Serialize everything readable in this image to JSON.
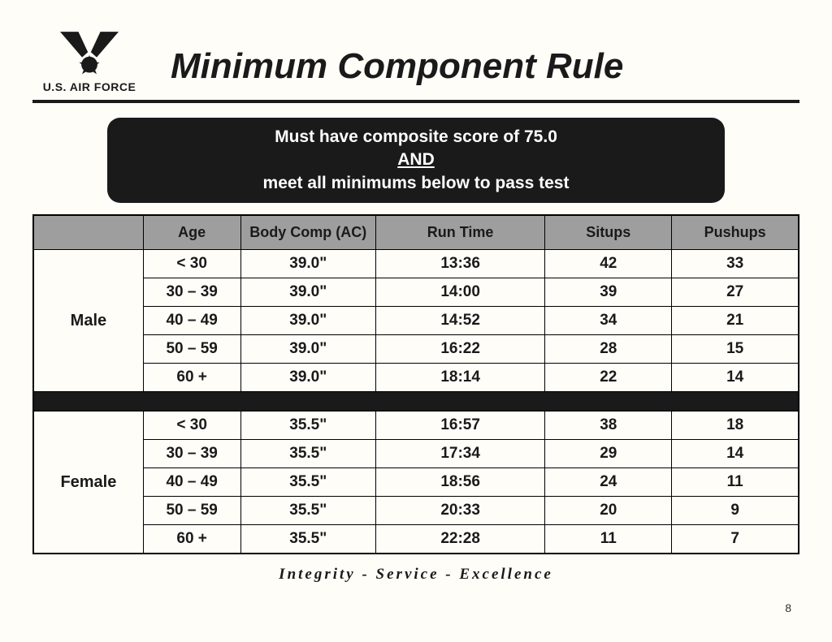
{
  "org_name": "U.S. AIR FORCE",
  "title": "Minimum Component Rule",
  "banner": {
    "line1": "Must have composite score of 75.0",
    "and": "AND",
    "line2": "meet all minimums below to pass test"
  },
  "columns": [
    "",
    "Age",
    "Body Comp (AC)",
    "Run Time",
    "Situps",
    "Pushups"
  ],
  "groups": [
    {
      "label": "Male",
      "rows": [
        {
          "age": "< 30",
          "bc": "39.0\"",
          "run": "13:36",
          "situps": "42",
          "pushups": "33"
        },
        {
          "age": "30 – 39",
          "bc": "39.0\"",
          "run": "14:00",
          "situps": "39",
          "pushups": "27"
        },
        {
          "age": "40 – 49",
          "bc": "39.0\"",
          "run": "14:52",
          "situps": "34",
          "pushups": "21"
        },
        {
          "age": "50 – 59",
          "bc": "39.0\"",
          "run": "16:22",
          "situps": "28",
          "pushups": "15"
        },
        {
          "age": "60 +",
          "bc": "39.0\"",
          "run": "18:14",
          "situps": "22",
          "pushups": "14"
        }
      ]
    },
    {
      "label": "Female",
      "rows": [
        {
          "age": "< 30",
          "bc": "35.5\"",
          "run": "16:57",
          "situps": "38",
          "pushups": "18"
        },
        {
          "age": "30 – 39",
          "bc": "35.5\"",
          "run": "17:34",
          "situps": "29",
          "pushups": "14"
        },
        {
          "age": "40 – 49",
          "bc": "35.5\"",
          "run": "18:56",
          "situps": "24",
          "pushups": "11"
        },
        {
          "age": "50 – 59",
          "bc": "35.5\"",
          "run": "20:33",
          "situps": "20",
          "pushups": "9"
        },
        {
          "age": "60 +",
          "bc": "35.5\"",
          "run": "22:28",
          "situps": "11",
          "pushups": "7"
        }
      ]
    }
  ],
  "footer": "Integrity - Service - Excellence",
  "page_number": "8",
  "colors": {
    "background": "#fefdf8",
    "text": "#1a1a1a",
    "banner_bg": "#1a1a1a",
    "banner_fg": "#ffffff",
    "header_bg": "#9e9e9e",
    "border": "#000000"
  }
}
